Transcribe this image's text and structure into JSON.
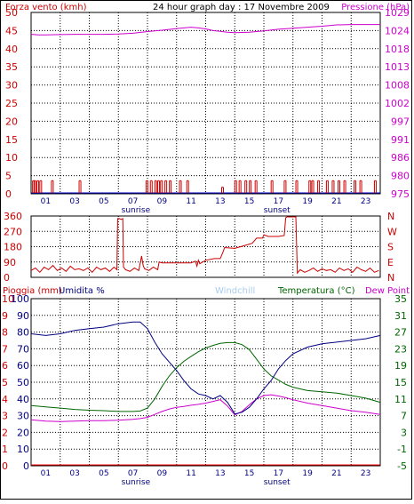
{
  "chart_data": [
    {
      "type": "line",
      "title": "24 hour graph day : 17 Novembre 2009",
      "left_axis_label": "Forza vento (kmh)",
      "right_axis_label": "Pressione (hPa)",
      "left_ticks": [
        "50",
        "45",
        "40",
        "35",
        "30",
        "25",
        "20",
        "15",
        "10",
        "5",
        "0"
      ],
      "right_ticks": [
        "1029",
        "1024",
        "1018",
        "1013",
        "1008",
        "1002",
        "997",
        "991",
        "986",
        "980",
        "975"
      ],
      "left_ylim": [
        0,
        50
      ],
      "right_ylim": [
        975,
        1029
      ],
      "x_ticks": [
        "01",
        "03",
        "05",
        "07",
        "09",
        "11",
        "13",
        "15",
        "17",
        "19",
        "21",
        "23"
      ],
      "xlim": [
        0,
        24
      ],
      "annotations": [
        {
          "text": "sunrise",
          "x": 7.2
        },
        {
          "text": "sunset",
          "x": 16.9
        }
      ],
      "series": [
        {
          "name": "Pressione (hPa)",
          "axis": "right",
          "x": [
            0,
            0.5,
            1,
            2,
            3,
            4,
            5,
            6,
            7,
            8,
            9,
            10,
            11,
            11.5,
            12,
            12.5,
            13,
            13.5,
            14,
            15,
            16,
            17,
            18,
            19,
            20,
            20.5,
            21,
            22,
            23,
            24
          ],
          "y": [
            1022.5,
            1022.3,
            1022.3,
            1022.4,
            1022.5,
            1022.5,
            1022.5,
            1022.6,
            1022.8,
            1023.3,
            1023.7,
            1024.2,
            1024.6,
            1024.4,
            1024.1,
            1023.6,
            1023.4,
            1023.1,
            1023.0,
            1023.1,
            1023.5,
            1024.0,
            1024.3,
            1024.6,
            1024.9,
            1025.1,
            1025.3,
            1025.4,
            1025.4,
            1025.4
          ]
        },
        {
          "name": "Forza vento (kmh)",
          "axis": "left",
          "x": [
            0.1,
            0.2,
            0.4,
            0.6,
            1.4,
            3.3,
            7.9,
            8.2,
            8.5,
            8.7,
            8.9,
            9.2,
            9.5,
            10.2,
            10.7,
            13.1,
            14.0,
            14.3,
            14.7,
            15.0,
            15.4,
            16.5,
            17.4,
            18.2,
            19.1,
            19.3,
            19.7,
            20.3,
            20.7,
            21.1,
            21.5,
            22.2,
            22.6,
            23.6
          ],
          "y": [
            3.6,
            3.6,
            3.6,
            3.6,
            3.6,
            3.6,
            3.6,
            3.6,
            3.6,
            3.6,
            3.6,
            3.6,
            3.6,
            3.6,
            3.6,
            1.8,
            3.6,
            3.6,
            3.6,
            3.6,
            3.6,
            3.6,
            3.6,
            3.6,
            3.6,
            3.6,
            3.6,
            3.6,
            3.6,
            3.6,
            3.6,
            3.6,
            3.6,
            3.6
          ]
        }
      ]
    },
    {
      "type": "line",
      "left_ticks": [
        "360",
        "270",
        "180",
        "90",
        "0"
      ],
      "right_ticks": [
        "N",
        "W",
        "S",
        "E",
        "N"
      ],
      "ylim": [
        0,
        360
      ],
      "xlim": [
        0,
        24
      ],
      "series": [
        {
          "name": "Direzione vento",
          "x": [
            0,
            0.3,
            0.6,
            0.9,
            1.2,
            1.5,
            1.8,
            2.1,
            2.4,
            2.7,
            3.0,
            3.3,
            3.6,
            3.9,
            4.2,
            4.5,
            4.8,
            5.1,
            5.4,
            5.7,
            5.9,
            5.95,
            6.05,
            6.2,
            6.3,
            6.35,
            6.5,
            6.8,
            7.1,
            7.4,
            7.6,
            7.7,
            7.8,
            8.1,
            8.4,
            8.7,
            8.8,
            9.0,
            10.0,
            11.0,
            11.3,
            11.4,
            11.5,
            11.6,
            12.0,
            12.6,
            13.0,
            13.2,
            13.3,
            14.0,
            14.8,
            15.2,
            15.5,
            15.9,
            16.0,
            16.3,
            17.0,
            17.4,
            17.5,
            17.6,
            18.2,
            18.3,
            18.5,
            18.8,
            19.1,
            19.4,
            19.7,
            20.0,
            20.3,
            20.6,
            20.9,
            21.2,
            21.5,
            21.8,
            22.1,
            22.4,
            22.7,
            23.0,
            23.3,
            23.6,
            23.9
          ],
          "y": [
            40,
            55,
            30,
            60,
            45,
            70,
            40,
            55,
            35,
            65,
            45,
            50,
            40,
            55,
            30,
            60,
            45,
            55,
            35,
            60,
            45,
            345,
            345,
            340,
            345,
            60,
            45,
            35,
            55,
            40,
            125,
            70,
            50,
            40,
            60,
            45,
            90,
            85,
            85,
            85,
            95,
            65,
            100,
            80,
            100,
            110,
            110,
            150,
            175,
            170,
            190,
            200,
            230,
            230,
            250,
            240,
            240,
            245,
            350,
            355,
            355,
            25,
            45,
            30,
            40,
            55,
            35,
            50,
            40,
            45,
            30,
            55,
            40,
            50,
            30,
            60,
            45,
            35,
            55,
            30,
            40
          ]
        }
      ]
    },
    {
      "type": "line",
      "labels": [
        "Pioggia (mm)",
        "Umidita %",
        "Windchill",
        "Temperatura (°C)",
        "Dew Point"
      ],
      "left_ticks_rain": [
        "10",
        "9",
        "8",
        "7",
        "6",
        "5",
        "4",
        "3",
        "2",
        "1",
        "0"
      ],
      "left_ticks_humidity": [
        "100",
        "90",
        "80",
        "70",
        "60",
        "50",
        "40",
        "30",
        "20",
        "10",
        "0"
      ],
      "right_ticks": [
        "35",
        "31",
        "27",
        "23",
        "19",
        "15",
        "11",
        "7",
        "3",
        "-1",
        "-5"
      ],
      "humidity_ylim": [
        0,
        100
      ],
      "temperature_ylim": [
        -5,
        35
      ],
      "x_ticks": [
        "01",
        "03",
        "05",
        "07",
        "09",
        "11",
        "13",
        "15",
        "17",
        "19",
        "21",
        "23"
      ],
      "xlim": [
        0,
        24
      ],
      "annotations": [
        {
          "text": "sunrise",
          "x": 7.2
        },
        {
          "text": "sunset",
          "x": 16.9
        }
      ],
      "series": [
        {
          "name": "Umidita %",
          "axis": "humidity",
          "x": [
            0,
            1,
            2,
            3,
            4,
            5,
            6,
            7,
            7.5,
            8,
            8.5,
            9,
            9.5,
            10,
            10.5,
            11,
            11.5,
            12,
            12.5,
            13,
            13.5,
            14,
            14.5,
            15,
            15.5,
            16,
            16.5,
            17,
            17.5,
            18,
            19,
            20,
            21,
            22,
            23,
            24
          ],
          "y": [
            79,
            78,
            79,
            81,
            82,
            83,
            85,
            86,
            86,
            82,
            74,
            67,
            62,
            57,
            51,
            46,
            43,
            42,
            40,
            42,
            38,
            31,
            32,
            35,
            40,
            46,
            51,
            58,
            63,
            67,
            71,
            73,
            74,
            75,
            76,
            78
          ]
        },
        {
          "name": "Temperatura (°C)",
          "axis": "temperature",
          "x": [
            0,
            1,
            2,
            3,
            4,
            5,
            6,
            7,
            7.5,
            8,
            8.5,
            9,
            9.5,
            10,
            10.5,
            11,
            11.5,
            12,
            12.5,
            13,
            13.5,
            14,
            14.5,
            15,
            15.5,
            16,
            16.5,
            17,
            17.5,
            18,
            19,
            20,
            21,
            22,
            23,
            24
          ],
          "y": [
            9.4,
            9.1,
            8.8,
            8.5,
            8.3,
            8.2,
            8.0,
            8.0,
            8.1,
            8.8,
            11.0,
            14.0,
            16.5,
            18.5,
            20.0,
            21.2,
            22.3,
            23.2,
            23.8,
            24.3,
            24.5,
            24.5,
            24.0,
            22.8,
            20.5,
            18.2,
            16.5,
            15.5,
            14.5,
            13.8,
            13.0,
            12.7,
            12.4,
            11.8,
            11.2,
            10.2
          ]
        },
        {
          "name": "Dew Point",
          "axis": "temperature",
          "x": [
            0,
            1,
            2,
            3,
            4,
            5,
            6,
            7,
            7.5,
            8,
            8.5,
            9,
            9.5,
            10,
            10.5,
            11,
            11.5,
            12,
            12.5,
            13,
            13.5,
            14,
            14.5,
            15,
            15.5,
            16,
            16.5,
            17,
            17.5,
            18,
            19,
            20,
            21,
            22,
            23,
            24
          ],
          "y": [
            6.0,
            5.7,
            5.6,
            5.7,
            5.8,
            5.8,
            5.9,
            6.1,
            6.3,
            6.6,
            7.3,
            8.0,
            8.6,
            9.0,
            9.2,
            9.5,
            9.7,
            10.0,
            10.4,
            10.8,
            9.3,
            7.2,
            8.0,
            9.6,
            11.0,
            11.8,
            12.0,
            11.7,
            11.3,
            10.8,
            10.0,
            9.4,
            8.8,
            8.2,
            7.8,
            7.3
          ]
        },
        {
          "name": "Pioggia (mm)",
          "axis": "rain",
          "x": [
            0,
            24
          ],
          "y": [
            0,
            0
          ]
        }
      ]
    }
  ],
  "colors": {
    "pressure": "#cc00cc",
    "wind": "#cc0000",
    "humidity": "#000080",
    "temperature": "#006600",
    "dewpoint": "#cc00cc",
    "windchill": "#aaccee",
    "rain": "#ff0000",
    "grid": "#000000",
    "wind_label": "#cc0000",
    "pressure_label": "#cc00cc",
    "right_axis_wind": "#cc0000",
    "right_axis_temp": "#006600"
  }
}
